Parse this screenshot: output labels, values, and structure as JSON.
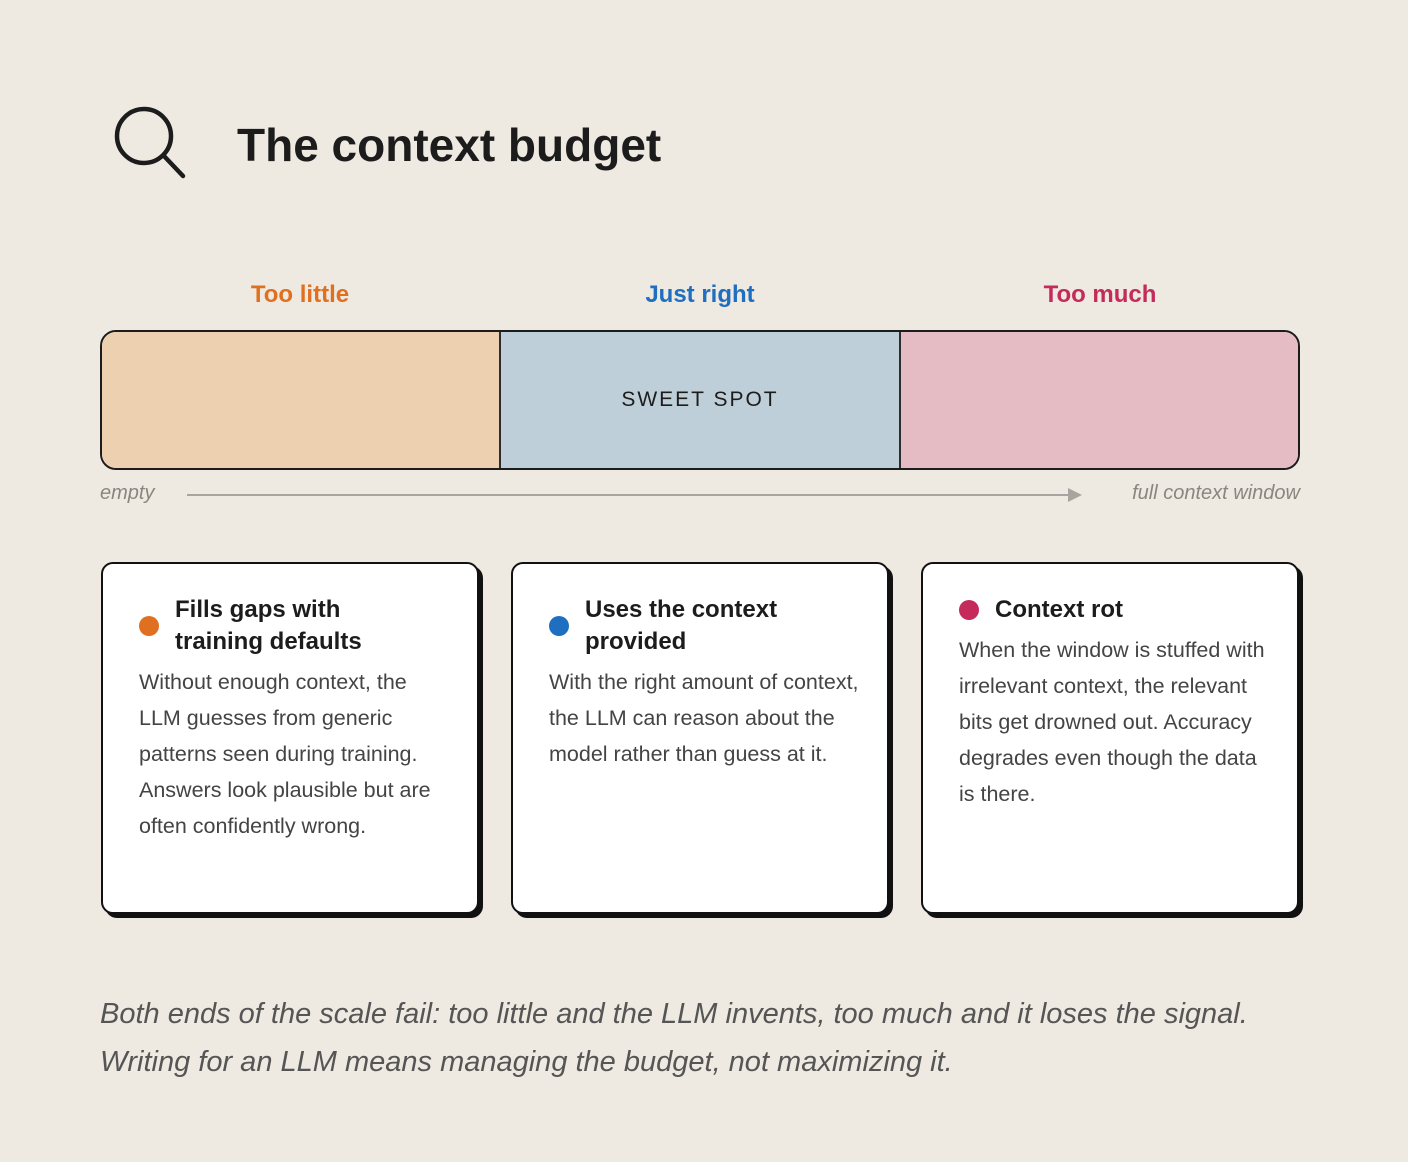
{
  "header": {
    "title": "The context budget",
    "icon": "search-icon"
  },
  "scale": {
    "zones": [
      {
        "label": "Too little",
        "color": "#e07020",
        "fill": "#ecd0b0",
        "text": ""
      },
      {
        "label": "Just right",
        "color": "#1f6fc0",
        "fill": "#bfcfd9",
        "text": "SWEET SPOT"
      },
      {
        "label": "Too much",
        "color": "#c42a5a",
        "fill": "#e6bcc4",
        "text": ""
      }
    ],
    "axis_start": "empty",
    "axis_end": "full context window"
  },
  "cards": [
    {
      "title": "Fills gaps with training defaults",
      "dot": "#e07020",
      "body": "Without enough context, the LLM guesses from generic patterns seen during training. Answers look plausible but are often confidently wrong."
    },
    {
      "title": "Uses the context provided",
      "dot": "#1f6fc0",
      "body": "With the right amount of context, the LLM can reason about the model rather than guess at it."
    },
    {
      "title": "Context rot",
      "dot": "#c42a5a",
      "body": "When the window is stuffed with irrelevant context, the relevant bits get drowned out. Accuracy degrades even though the data is there."
    }
  ],
  "footer": "Both ends of the scale fail: too little and the LLM invents, too much and it loses the signal. Writing for an LLM means managing the budget, not maximizing it."
}
